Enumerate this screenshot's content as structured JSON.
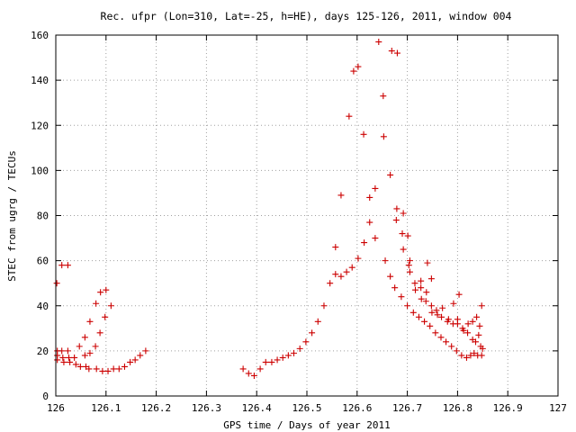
{
  "chart_data": {
    "type": "scatter",
    "title": "Rec. ufpr (Lon=310, Lat=-25, h=HE), days 125-126, 2011, window 004",
    "xlabel": "GPS time / Days of year 2011",
    "ylabel": "STEC from ugrg / TECUs",
    "xlim": [
      126,
      127
    ],
    "ylim": [
      0,
      160
    ],
    "x_ticks": [
      "126",
      "126.1",
      "126.2",
      "126.3",
      "126.4",
      "126.5",
      "126.6",
      "126.7",
      "126.8",
      "126.9",
      "127"
    ],
    "y_ticks": [
      "0",
      "20",
      "40",
      "60",
      "80",
      "100",
      "120",
      "140",
      "160"
    ],
    "grid": true,
    "marker": "plus",
    "marker_color": "#cc0000",
    "points": [
      [
        126.002,
        50
      ],
      [
        126.003,
        20
      ],
      [
        126.003,
        18
      ],
      [
        126.003,
        16
      ],
      [
        126.012,
        58
      ],
      [
        126.024,
        58
      ],
      [
        126.012,
        20
      ],
      [
        126.014,
        17
      ],
      [
        126.016,
        15
      ],
      [
        126.024,
        20
      ],
      [
        126.026,
        17
      ],
      [
        126.028,
        15
      ],
      [
        126.037,
        17
      ],
      [
        126.04,
        14
      ],
      [
        126.047,
        22
      ],
      [
        126.049,
        13
      ],
      [
        126.058,
        18
      ],
      [
        126.06,
        13
      ],
      [
        126.058,
        26
      ],
      [
        126.066,
        12
      ],
      [
        126.068,
        19
      ],
      [
        126.068,
        33
      ],
      [
        126.079,
        22
      ],
      [
        126.081,
        12
      ],
      [
        126.08,
        41
      ],
      [
        126.088,
        28
      ],
      [
        126.089,
        46
      ],
      [
        126.093,
        11
      ],
      [
        126.1,
        47
      ],
      [
        126.098,
        35
      ],
      [
        126.104,
        11
      ],
      [
        126.11,
        40
      ],
      [
        126.115,
        12
      ],
      [
        126.126,
        12
      ],
      [
        126.137,
        13
      ],
      [
        126.148,
        15
      ],
      [
        126.158,
        16
      ],
      [
        126.168,
        18
      ],
      [
        126.179,
        20
      ],
      [
        126.373,
        12
      ],
      [
        126.384,
        10
      ],
      [
        126.395,
        9
      ],
      [
        126.407,
        12
      ],
      [
        126.418,
        15
      ],
      [
        126.43,
        15
      ],
      [
        126.441,
        16
      ],
      [
        126.452,
        17
      ],
      [
        126.463,
        18
      ],
      [
        126.474,
        19
      ],
      [
        126.486,
        21
      ],
      [
        126.498,
        24
      ],
      [
        126.51,
        28
      ],
      [
        126.522,
        33
      ],
      [
        126.534,
        40
      ],
      [
        126.546,
        50
      ],
      [
        126.557,
        54
      ],
      [
        126.557,
        66
      ],
      [
        126.568,
        53
      ],
      [
        126.568,
        89
      ],
      [
        126.579,
        55
      ],
      [
        126.584,
        124
      ],
      [
        126.59,
        57
      ],
      [
        126.593,
        144
      ],
      [
        126.602,
        146
      ],
      [
        126.602,
        61
      ],
      [
        126.613,
        116
      ],
      [
        126.614,
        68
      ],
      [
        126.625,
        77
      ],
      [
        126.625,
        88
      ],
      [
        126.636,
        70
      ],
      [
        126.636,
        92
      ],
      [
        126.643,
        157
      ],
      [
        126.652,
        133
      ],
      [
        126.653,
        115
      ],
      [
        126.656,
        60
      ],
      [
        126.666,
        53
      ],
      [
        126.666,
        98
      ],
      [
        126.669,
        153
      ],
      [
        126.675,
        48
      ],
      [
        126.678,
        78
      ],
      [
        126.679,
        83
      ],
      [
        126.68,
        152
      ],
      [
        126.688,
        44
      ],
      [
        126.69,
        72
      ],
      [
        126.692,
        81
      ],
      [
        126.692,
        65
      ],
      [
        126.7,
        40
      ],
      [
        126.701,
        71
      ],
      [
        126.703,
        58
      ],
      [
        126.705,
        60
      ],
      [
        126.705,
        55
      ],
      [
        126.712,
        37
      ],
      [
        126.715,
        50
      ],
      [
        126.716,
        47
      ],
      [
        126.723,
        35
      ],
      [
        126.727,
        48
      ],
      [
        126.727,
        51
      ],
      [
        126.728,
        43
      ],
      [
        126.734,
        33
      ],
      [
        126.737,
        42
      ],
      [
        126.738,
        46
      ],
      [
        126.74,
        59
      ],
      [
        126.745,
        31
      ],
      [
        126.748,
        40
      ],
      [
        126.748,
        52
      ],
      [
        126.749,
        37
      ],
      [
        126.756,
        28
      ],
      [
        126.758,
        38
      ],
      [
        126.76,
        36
      ],
      [
        126.767,
        26
      ],
      [
        126.768,
        35
      ],
      [
        126.77,
        39
      ],
      [
        126.777,
        24
      ],
      [
        126.78,
        33
      ],
      [
        126.782,
        34
      ],
      [
        126.788,
        22
      ],
      [
        126.791,
        32
      ],
      [
        126.792,
        41
      ],
      [
        126.798,
        20
      ],
      [
        126.8,
        32
      ],
      [
        126.8,
        34
      ],
      [
        126.803,
        45
      ],
      [
        126.808,
        18
      ],
      [
        126.81,
        30
      ],
      [
        126.812,
        29
      ],
      [
        126.818,
        17
      ],
      [
        126.82,
        28
      ],
      [
        126.821,
        32
      ],
      [
        126.826,
        18
      ],
      [
        126.83,
        25
      ],
      [
        126.83,
        33
      ],
      [
        126.833,
        19
      ],
      [
        126.836,
        24
      ],
      [
        126.838,
        35
      ],
      [
        126.84,
        18
      ],
      [
        126.842,
        27
      ],
      [
        126.844,
        31
      ],
      [
        126.846,
        22
      ],
      [
        126.848,
        18
      ],
      [
        126.848,
        40
      ],
      [
        126.85,
        21
      ]
    ]
  }
}
